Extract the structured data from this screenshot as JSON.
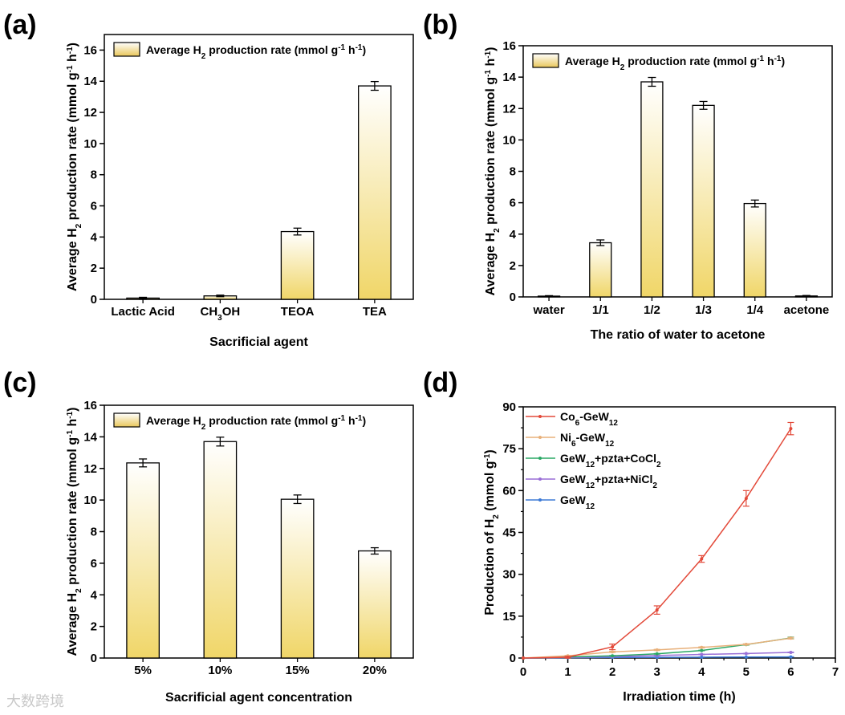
{
  "panels": [
    "(a)",
    "(b)",
    "(c)",
    "(d)"
  ],
  "colors": {
    "bar_top": "#ffffff",
    "bar_bottom": "#f0d668",
    "legend_swatch_top": "#ffffff",
    "legend_swatch_bottom": "#e9c75a",
    "axis": "#000000"
  },
  "watermark": "大数跨境",
  "chart_data": [
    {
      "id": "a",
      "type": "bar",
      "title": "",
      "xlabel": "Sacrificial agent",
      "ylabel": "Average H2 production rate  (mmol g-1 h-1)",
      "legend": "Average H2 production rate  (mmol g-1 h-1)",
      "categories": [
        "Lactic Acid",
        "CH3OH",
        "TEOA",
        "TEA"
      ],
      "values": [
        0.08,
        0.22,
        4.35,
        13.7
      ],
      "errors": [
        0.05,
        0.05,
        0.22,
        0.28
      ],
      "ylim": [
        0,
        17
      ],
      "yticks": [
        0,
        2,
        4,
        6,
        8,
        10,
        12,
        14,
        16
      ]
    },
    {
      "id": "b",
      "type": "bar",
      "title": "",
      "xlabel": "The ratio of water to acetone",
      "ylabel": "Average H2 production rate  (mmol g-1 h-1)",
      "legend": "Average H2 production rate  (mmol g-1 h-1)",
      "categories": [
        "water",
        "1/1",
        "1/2",
        "1/3",
        "1/4",
        "acetone"
      ],
      "values": [
        0.05,
        3.45,
        13.7,
        12.2,
        5.95,
        0.06
      ],
      "errors": [
        0.03,
        0.18,
        0.28,
        0.25,
        0.22,
        0.03
      ],
      "ylim": [
        0,
        16
      ],
      "yticks": [
        0,
        2,
        4,
        6,
        8,
        10,
        12,
        14,
        16
      ]
    },
    {
      "id": "c",
      "type": "bar",
      "title": "",
      "xlabel": "Sacrificial agent concentration",
      "ylabel": "Average H2 production rate  (mmol g-1 h-1)",
      "legend": "Average H2 production rate  (mmol g-1 h-1)",
      "categories": [
        "5%",
        "10%",
        "15%",
        "20%"
      ],
      "values": [
        12.35,
        13.7,
        10.05,
        6.78
      ],
      "errors": [
        0.25,
        0.28,
        0.27,
        0.2
      ],
      "ylim": [
        0,
        16
      ],
      "yticks": [
        0,
        2,
        4,
        6,
        8,
        10,
        12,
        14,
        16
      ]
    },
    {
      "id": "d",
      "type": "line",
      "title": "",
      "xlabel": "Irradiation time (h)",
      "ylabel": "Production of H2 (mmol g-1)",
      "x": [
        0,
        1,
        2,
        3,
        4,
        5,
        6
      ],
      "xlim": [
        0,
        7
      ],
      "xticks": [
        0,
        1,
        2,
        3,
        4,
        5,
        6,
        7
      ],
      "ylim": [
        0,
        90
      ],
      "yticks": [
        0,
        15,
        30,
        45,
        60,
        75,
        90
      ],
      "series": [
        {
          "name": "Co6-GeW12",
          "color": "#e34a3a",
          "values": [
            0,
            0.3,
            4.0,
            17.2,
            35.5,
            57.2,
            82.2
          ],
          "errors": [
            0,
            0.3,
            1.0,
            1.5,
            1.2,
            2.8,
            2.2
          ]
        },
        {
          "name": "Ni6-GeW12",
          "color": "#e8b07a",
          "values": [
            0,
            0.8,
            2.2,
            2.9,
            3.8,
            4.9,
            7.1
          ],
          "errors": [
            0,
            0.1,
            0.2,
            0.2,
            0.2,
            0.2,
            0.3
          ]
        },
        {
          "name": "GeW12+pzta+CoCl2",
          "color": "#2aa865",
          "values": [
            0,
            0.4,
            0.8,
            1.5,
            2.7,
            4.8,
            7.2
          ],
          "errors": [
            0,
            0.1,
            0.1,
            0.1,
            0.1,
            0.2,
            0.3
          ]
        },
        {
          "name": "GeW12+pzta+NiCl2",
          "color": "#9a6fd6",
          "values": [
            0,
            0.2,
            0.5,
            0.9,
            1.3,
            1.6,
            2.0
          ],
          "errors": [
            0,
            0.05,
            0.05,
            0.1,
            0.1,
            0.1,
            0.1
          ]
        },
        {
          "name": "GeW12",
          "color": "#3d7ad6",
          "values": [
            0,
            0.1,
            0.2,
            0.25,
            0.3,
            0.35,
            0.4
          ],
          "errors": [
            0,
            0.05,
            0.05,
            0.05,
            0.05,
            0.05,
            0.05
          ]
        }
      ]
    }
  ]
}
